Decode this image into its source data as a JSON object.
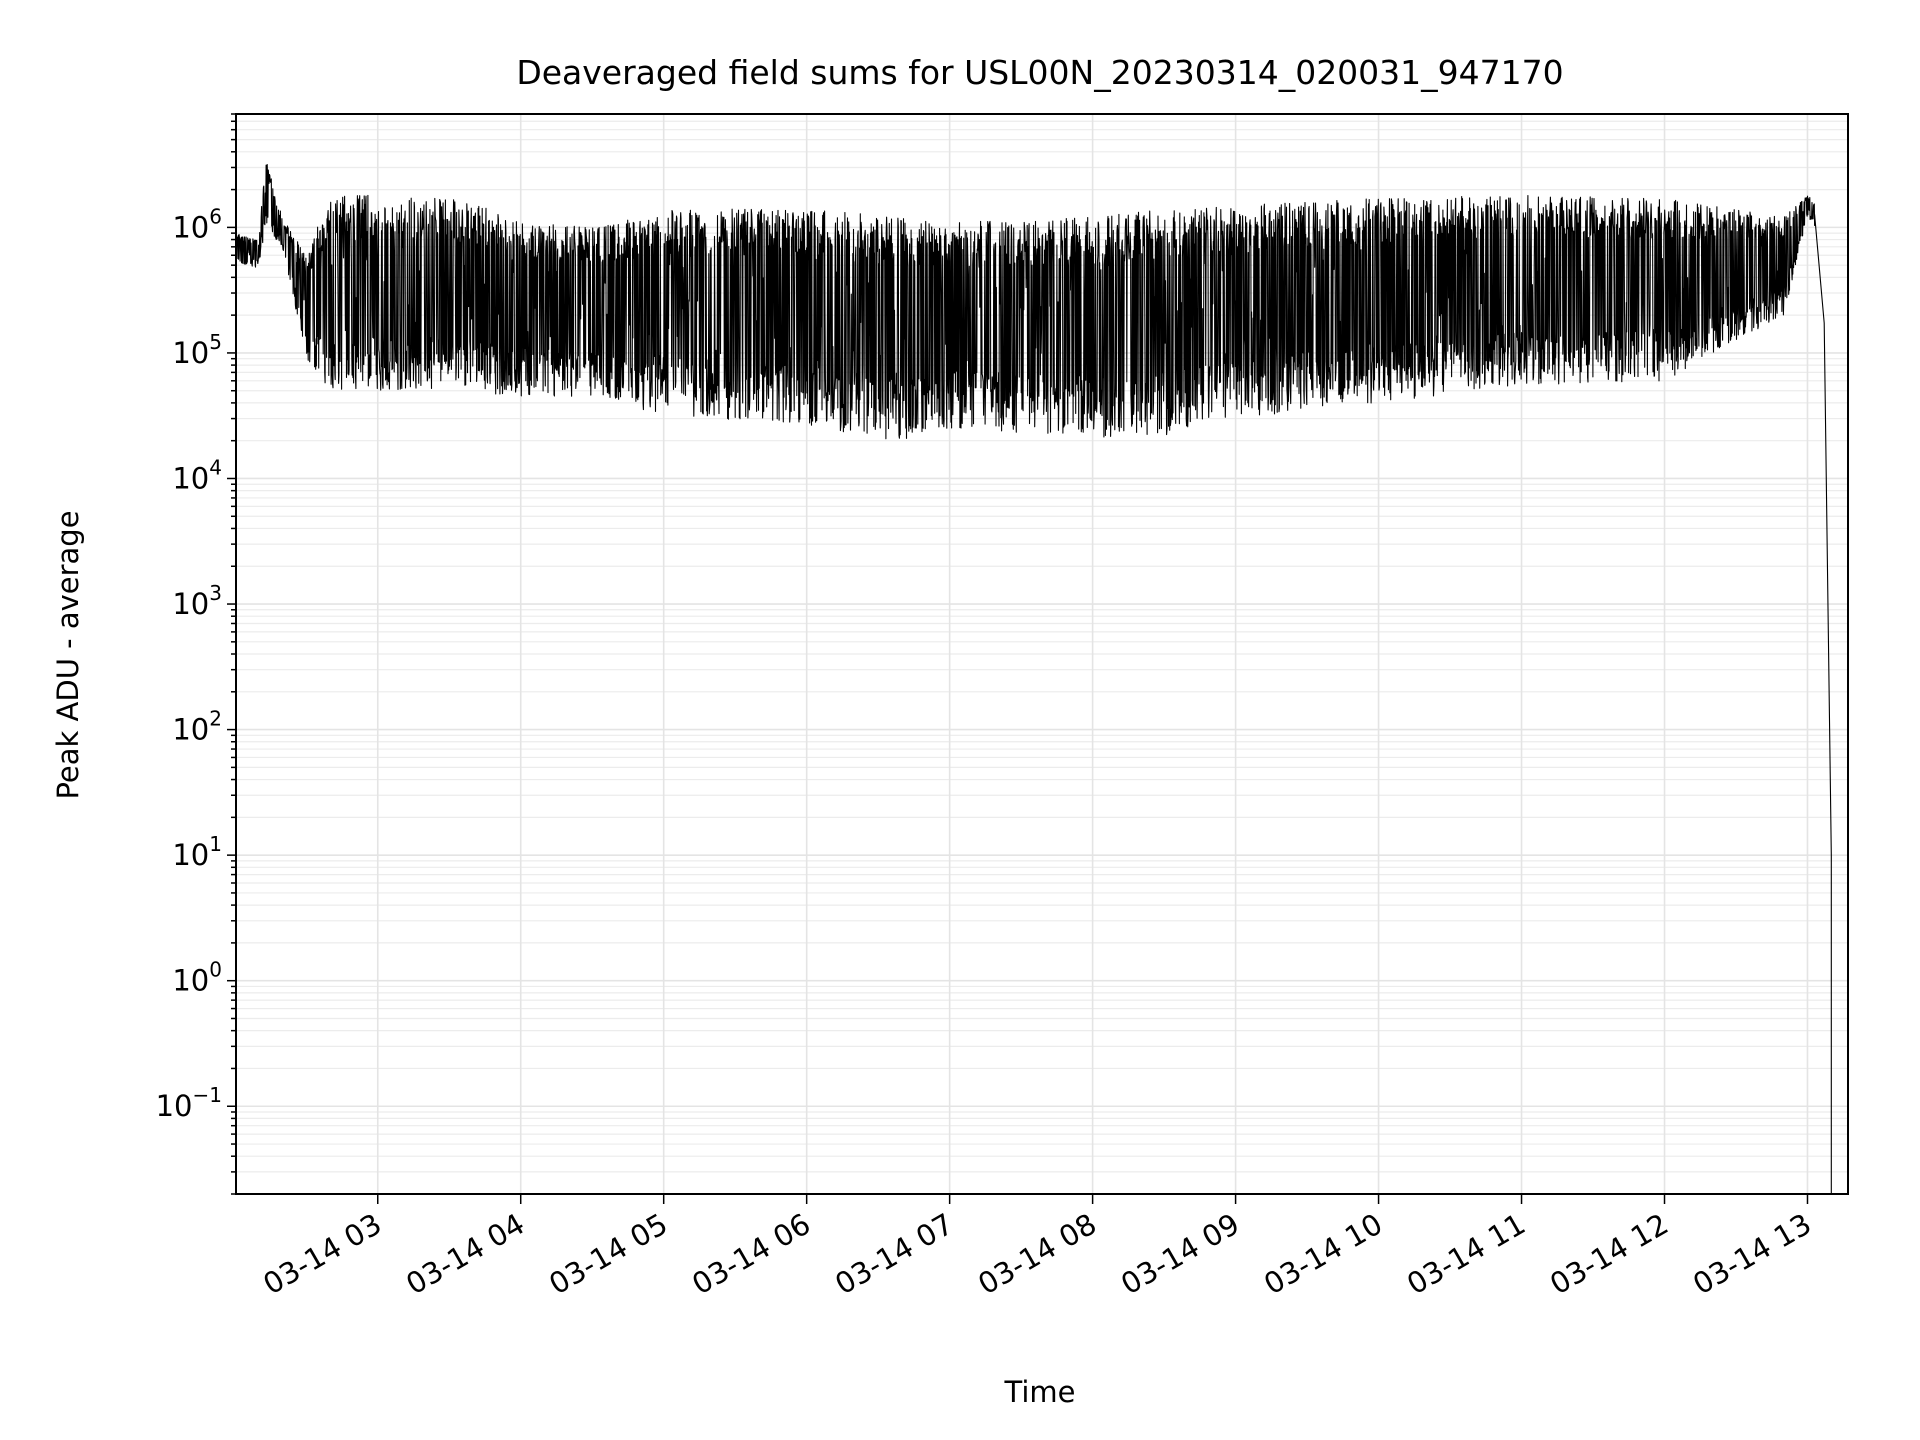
{
  "chart_data": {
    "type": "line",
    "title": "Deaveraged field sums for USL00N_20230314_020031_947170",
    "xlabel": "Time",
    "ylabel": "Peak ADU - average",
    "yscale": "log",
    "ylim": [
      0.02,
      8000000
    ],
    "xlim": [
      "2023-03-14 02:00:31",
      "2023-03-14 13:17:00"
    ],
    "grid": true,
    "line_color": "#000000",
    "x_ticks": [
      {
        "value": "2023-03-14 03:00",
        "label": "03-14 03"
      },
      {
        "value": "2023-03-14 04:00",
        "label": "03-14 04"
      },
      {
        "value": "2023-03-14 05:00",
        "label": "03-14 05"
      },
      {
        "value": "2023-03-14 06:00",
        "label": "03-14 06"
      },
      {
        "value": "2023-03-14 07:00",
        "label": "03-14 07"
      },
      {
        "value": "2023-03-14 08:00",
        "label": "03-14 08"
      },
      {
        "value": "2023-03-14 09:00",
        "label": "03-14 09"
      },
      {
        "value": "2023-03-14 10:00",
        "label": "03-14 10"
      },
      {
        "value": "2023-03-14 11:00",
        "label": "03-14 11"
      },
      {
        "value": "2023-03-14 12:00",
        "label": "03-14 12"
      },
      {
        "value": "2023-03-14 13:00",
        "label": "03-14 13"
      }
    ],
    "y_ticks": [
      {
        "value": 0.1,
        "base": "10",
        "exp": "−1"
      },
      {
        "value": 1,
        "base": "10",
        "exp": "0"
      },
      {
        "value": 10,
        "base": "10",
        "exp": "1"
      },
      {
        "value": 100,
        "base": "10",
        "exp": "2"
      },
      {
        "value": 1000,
        "base": "10",
        "exp": "3"
      },
      {
        "value": 10000,
        "base": "10",
        "exp": "4"
      },
      {
        "value": 100000,
        "base": "10",
        "exp": "5"
      },
      {
        "value": 1000000,
        "base": "10",
        "exp": "6"
      }
    ],
    "series": [
      {
        "envelope": [
          {
            "time": "2023-03-14 02:00:31",
            "low": 500000,
            "high": 900000
          },
          {
            "time": "2023-03-14 02:10",
            "low": 480000,
            "high": 800000
          },
          {
            "time": "2023-03-14 02:13",
            "low": 1000000,
            "high": 3500000
          },
          {
            "time": "2023-03-14 02:20",
            "low": 700000,
            "high": 1200000
          },
          {
            "time": "2023-03-14 02:30",
            "low": 90000,
            "high": 600000
          },
          {
            "time": "2023-03-14 02:40",
            "low": 50000,
            "high": 1800000
          },
          {
            "time": "2023-03-14 03:00",
            "low": 50000,
            "high": 1800000
          },
          {
            "time": "2023-03-14 03:30",
            "low": 50000,
            "high": 1700000
          },
          {
            "time": "2023-03-14 04:00",
            "low": 45000,
            "high": 1200000
          },
          {
            "time": "2023-03-14 04:30",
            "low": 45000,
            "high": 1000000
          },
          {
            "time": "2023-03-14 05:00",
            "low": 32000,
            "high": 1400000
          },
          {
            "time": "2023-03-14 06:00",
            "low": 27000,
            "high": 1400000
          },
          {
            "time": "2023-03-14 06:40",
            "low": 19000,
            "high": 1200000
          },
          {
            "time": "2023-03-14 07:00",
            "low": 25000,
            "high": 1100000
          },
          {
            "time": "2023-03-14 08:00",
            "low": 21000,
            "high": 1200000
          },
          {
            "time": "2023-03-14 08:30",
            "low": 22000,
            "high": 1400000
          },
          {
            "time": "2023-03-14 09:00",
            "low": 30000,
            "high": 1500000
          },
          {
            "time": "2023-03-14 10:00",
            "low": 40000,
            "high": 1700000
          },
          {
            "time": "2023-03-14 11:00",
            "low": 55000,
            "high": 1800000
          },
          {
            "time": "2023-03-14 12:00",
            "low": 60000,
            "high": 1700000
          },
          {
            "time": "2023-03-14 12:50",
            "low": 200000,
            "high": 1200000
          },
          {
            "time": "2023-03-14 13:00",
            "low": 1200000,
            "high": 1800000
          },
          {
            "time": "2023-03-14 13:03",
            "low": 1000000,
            "high": 1600000
          },
          {
            "time": "2023-03-14 13:07",
            "low": 100000,
            "high": 300000
          },
          {
            "time": "2023-03-14 13:10",
            "low": 0.02,
            "high": 5000
          }
        ]
      }
    ]
  }
}
